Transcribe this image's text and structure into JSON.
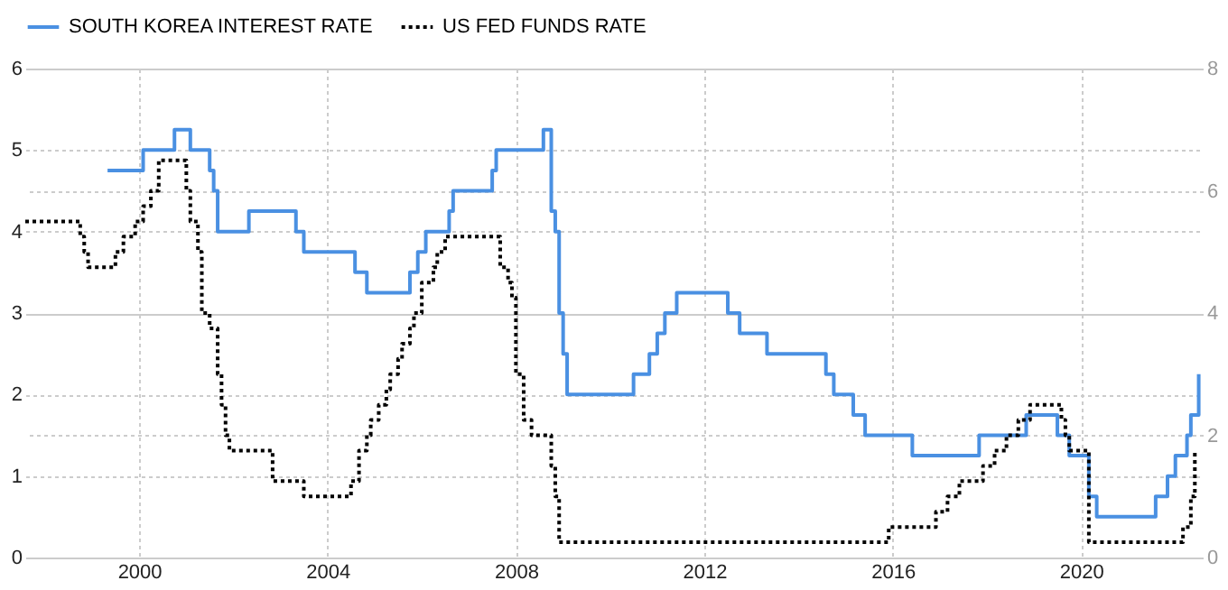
{
  "chart_data": {
    "type": "step",
    "xlim": [
      "1997-08",
      "2022-08"
    ],
    "xticks": [
      "2000",
      "2004",
      "2008",
      "2012",
      "2016",
      "2020"
    ],
    "ylim": [
      0,
      6
    ],
    "yticks": [
      0,
      1,
      2,
      3,
      4,
      5,
      6
    ],
    "y2lim": [
      0,
      8
    ],
    "y2ticks": [
      0,
      2,
      4,
      6,
      8
    ],
    "grid": true,
    "legend": "top left",
    "series": [
      {
        "name": "SOUTH KOREA INTEREST RATE",
        "color": "#4a90e2",
        "line_style": "solid",
        "x": [
          "1999-05",
          "2000-02",
          "2000-10",
          "2001-02",
          "2001-07",
          "2001-08",
          "2001-09",
          "2002-05",
          "2003-05",
          "2003-07",
          "2004-08",
          "2004-11",
          "2005-10",
          "2005-12",
          "2006-02",
          "2006-08",
          "2006-09",
          "2007-07",
          "2007-08",
          "2008-08",
          "2008-10",
          "2008-11",
          "2008-12",
          "2009-01",
          "2009-02",
          "2010-07",
          "2010-11",
          "2011-01",
          "2011-03",
          "2011-06",
          "2012-07",
          "2012-10",
          "2013-05",
          "2014-08",
          "2014-10",
          "2015-03",
          "2015-06",
          "2016-06",
          "2017-11",
          "2018-11",
          "2019-07",
          "2019-10",
          "2020-03",
          "2020-05",
          "2021-08",
          "2021-11",
          "2022-01",
          "2022-04",
          "2022-05",
          "2022-07"
        ],
        "values": [
          4.75,
          5.0,
          5.25,
          5.0,
          4.75,
          4.5,
          4.0,
          4.25,
          4.0,
          3.75,
          3.5,
          3.25,
          3.5,
          3.75,
          4.0,
          4.25,
          4.5,
          4.75,
          5.0,
          5.25,
          4.25,
          4.0,
          3.0,
          2.5,
          2.0,
          2.25,
          2.5,
          2.75,
          3.0,
          3.25,
          3.0,
          2.75,
          2.5,
          2.25,
          2.0,
          1.75,
          1.5,
          1.25,
          1.5,
          1.75,
          1.5,
          1.25,
          0.75,
          0.5,
          0.75,
          1.0,
          1.25,
          1.5,
          1.75,
          2.25
        ]
      },
      {
        "name": "US FED FUNDS RATE",
        "color": "#000000",
        "line_style": "dotted",
        "axis": "y2",
        "x": [
          "1997-08",
          "1998-10",
          "1998-11",
          "1998-12",
          "1999-07",
          "1999-09",
          "1999-12",
          "2000-02",
          "2000-04",
          "2000-06",
          "2001-01",
          "2001-02",
          "2001-04",
          "2001-05",
          "2001-07",
          "2001-09",
          "2001-10",
          "2001-11",
          "2001-12",
          "2002-11",
          "2003-07",
          "2004-07",
          "2004-09",
          "2004-11",
          "2004-12",
          "2005-02",
          "2005-04",
          "2005-05",
          "2005-07",
          "2005-08",
          "2005-10",
          "2005-11",
          "2006-01",
          "2006-04",
          "2006-05",
          "2006-07",
          "2007-09",
          "2007-11",
          "2007-12",
          "2008-01",
          "2008-03",
          "2008-05",
          "2008-10",
          "2008-11",
          "2008-12",
          "2015-12",
          "2016-12",
          "2017-03",
          "2017-06",
          "2017-12",
          "2018-03",
          "2018-06",
          "2018-09",
          "2018-12",
          "2019-08",
          "2019-09",
          "2019-10",
          "2020-03",
          "2022-03",
          "2022-05",
          "2022-06"
        ],
        "values": [
          5.5,
          5.25,
          5.0,
          4.75,
          5.0,
          5.25,
          5.5,
          5.75,
          6.0,
          6.5,
          6.0,
          5.5,
          5.0,
          4.0,
          3.75,
          3.0,
          2.5,
          2.0,
          1.75,
          1.25,
          1.0,
          1.25,
          1.75,
          2.0,
          2.25,
          2.5,
          2.75,
          3.0,
          3.25,
          3.5,
          3.75,
          4.0,
          4.5,
          4.75,
          5.0,
          5.25,
          4.75,
          4.5,
          4.25,
          3.0,
          2.25,
          2.0,
          1.5,
          1.0,
          0.25,
          0.5,
          0.75,
          1.0,
          1.25,
          1.5,
          1.75,
          2.0,
          2.25,
          2.5,
          2.25,
          2.0,
          1.75,
          0.25,
          0.5,
          1.0,
          1.75
        ]
      }
    ]
  }
}
